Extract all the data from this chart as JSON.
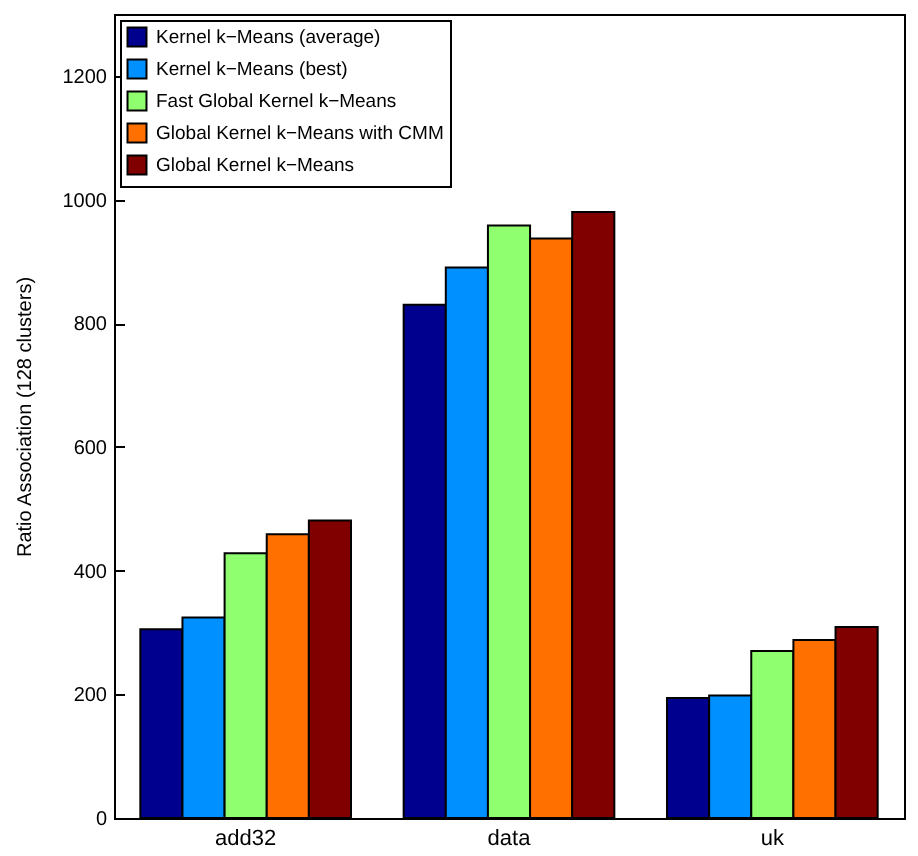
{
  "chart_data": {
    "type": "bar",
    "ylabel": "Ratio Association (128 clusters)",
    "categories": [
      "add32",
      "data",
      "uk"
    ],
    "series": [
      {
        "name": "Kernel k−Means (average)",
        "color": "#00008f",
        "values": [
          305,
          830,
          194
        ]
      },
      {
        "name": "Kernel k−Means (best)",
        "color": "#0090ff",
        "values": [
          324,
          890,
          198
        ]
      },
      {
        "name": "Fast Global Kernel k−Means",
        "color": "#8fff70",
        "values": [
          428,
          958,
          270
        ]
      },
      {
        "name": "Global Kernel k−Means with CMM",
        "color": "#ff7000",
        "values": [
          459,
          937,
          288
        ]
      },
      {
        "name": "Global Kernel k−Means",
        "color": "#800000",
        "values": [
          481,
          980,
          309
        ]
      }
    ],
    "ylim": [
      0,
      1300
    ],
    "yticks": [
      0,
      200,
      400,
      600,
      800,
      1000,
      1200
    ],
    "grid": false,
    "legend": "top left"
  }
}
